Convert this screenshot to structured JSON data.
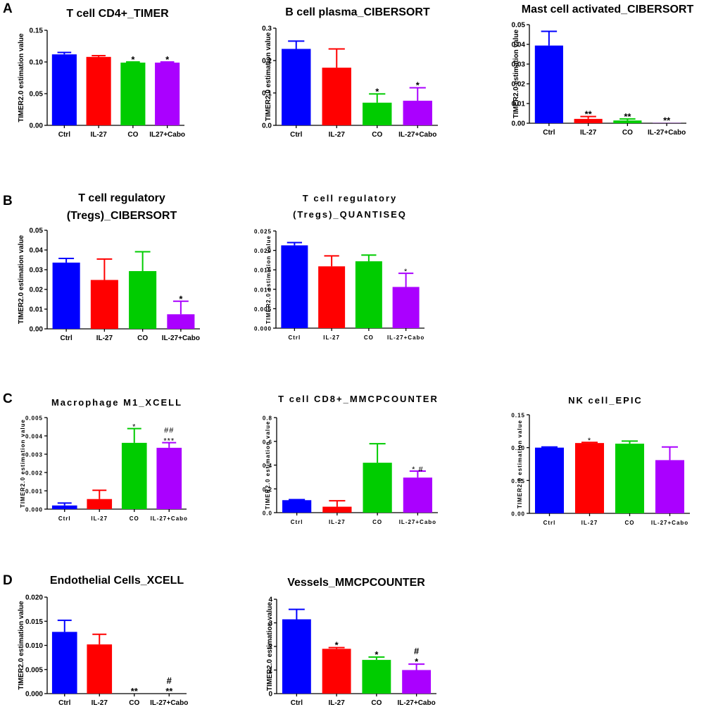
{
  "panel_letters": [
    "A",
    "B",
    "C",
    "D"
  ],
  "chart_data": [
    {
      "type": "bar",
      "title": "T cell CD4+_TIMER",
      "ylabel": "TIMER2.0 estimation value",
      "categories": [
        "Ctrl",
        "IL-27",
        "CO",
        "IL27+Cabo"
      ],
      "values": [
        0.112,
        0.108,
        0.099,
        0.099
      ],
      "errors": [
        0.003,
        0.002,
        0.001,
        0.001
      ],
      "annotations": [
        [
          "",
          ""
        ],
        [
          "",
          ""
        ],
        [
          "*",
          ""
        ],
        [
          "*",
          ""
        ]
      ],
      "colors": [
        "#0000ff",
        "#ff0000",
        "#00cc00",
        "#aa00ff"
      ],
      "ylim": [
        0,
        0.15
      ],
      "yticks": [
        0,
        0.05,
        0.1,
        0.15
      ],
      "ytick_labels": [
        "0.00",
        "0.05",
        "0.10",
        "0.15"
      ]
    },
    {
      "type": "bar",
      "title": "B cell plasma_CIBERSORT",
      "ylabel": "TIMER2.0 estimation value",
      "categories": [
        "Ctrl",
        "IL-27",
        "CO",
        "IL-27+Cabo"
      ],
      "values": [
        0.236,
        0.178,
        0.07,
        0.076
      ],
      "errors": [
        0.024,
        0.058,
        0.027,
        0.04
      ],
      "annotations": [
        [
          "",
          ""
        ],
        [
          "",
          ""
        ],
        [
          "*",
          ""
        ],
        [
          "*",
          ""
        ]
      ],
      "colors": [
        "#0000ff",
        "#ff0000",
        "#00cc00",
        "#aa00ff"
      ],
      "ylim": [
        0,
        0.3
      ],
      "yticks": [
        0,
        0.1,
        0.2,
        0.3
      ],
      "ytick_labels": [
        "0.0",
        "0.1",
        "0.2",
        "0.3"
      ]
    },
    {
      "type": "bar",
      "title": "Mast cell activated_CIBERSORT",
      "ylabel": "TIMER2.0 estimation value",
      "categories": [
        "Ctrl",
        "IL-27",
        "CO",
        "IL-27+Cabo"
      ],
      "values": [
        0.0394,
        0.0022,
        0.0014,
        0.0001
      ],
      "errors": [
        0.0072,
        0.0012,
        0.0008,
        0
      ],
      "annotations": [
        [
          "",
          ""
        ],
        [
          "**",
          ""
        ],
        [
          "**",
          ""
        ],
        [
          "**",
          ""
        ]
      ],
      "colors": [
        "#0000ff",
        "#ff0000",
        "#00cc00",
        "#aa00ff"
      ],
      "ylim": [
        0,
        0.05
      ],
      "yticks": [
        0,
        0.01,
        0.02,
        0.03,
        0.04,
        0.05
      ],
      "ytick_labels": [
        "0.00",
        "0.01",
        "0.02",
        "0.03",
        "0.04",
        "0.05"
      ]
    },
    {
      "type": "bar",
      "title": "T cell regulatory",
      "title2": "(Tregs)_CIBERSORT",
      "ylabel": "TIMER2.0 estimation value",
      "categories": [
        "Ctrl",
        "IL-27",
        "CO",
        "IL-27+Cabo"
      ],
      "values": [
        0.0336,
        0.0248,
        0.0293,
        0.0074
      ],
      "errors": [
        0.0021,
        0.0106,
        0.0098,
        0.0066
      ],
      "annotations": [
        [
          "",
          ""
        ],
        [
          "",
          ""
        ],
        [
          "",
          ""
        ],
        [
          "*",
          ""
        ]
      ],
      "colors": [
        "#0000ff",
        "#ff0000",
        "#00cc00",
        "#aa00ff"
      ],
      "ylim": [
        0,
        0.05
      ],
      "yticks": [
        0,
        0.01,
        0.02,
        0.03,
        0.04,
        0.05
      ],
      "ytick_labels": [
        "0.00",
        "0.01",
        "0.02",
        "0.03",
        "0.04",
        "0.05"
      ]
    },
    {
      "type": "bar",
      "title": "T cell regulatory",
      "title2": "(Tregs)_QUANTISEQ",
      "ylabel": "TIMER2.0 estimation value",
      "categories": [
        "Ctrl",
        "IL-27",
        "CO",
        "IL-27+Cabo"
      ],
      "values": [
        0.0213,
        0.0159,
        0.0172,
        0.0106
      ],
      "errors": [
        0.0007,
        0.0027,
        0.0016,
        0.0035
      ],
      "annotations": [
        [
          "",
          ""
        ],
        [
          "",
          ""
        ],
        [
          "",
          ""
        ],
        [
          "*",
          ""
        ]
      ],
      "colors": [
        "#0000ff",
        "#ff0000",
        "#00cc00",
        "#aa00ff"
      ],
      "ylim": [
        0,
        0.025
      ],
      "yticks": [
        0,
        0.005,
        0.01,
        0.015,
        0.02,
        0.025
      ],
      "ytick_labels": [
        "0.000",
        "0.005",
        "0.010",
        "0.015",
        "0.020",
        "0.025"
      ]
    },
    {
      "type": "bar",
      "title": "Macrophage M1_XCELL",
      "ylabel": "TIMER2.0 estimation value",
      "categories": [
        "Ctrl",
        "IL-27",
        "CO",
        "IL-27+Cabo"
      ],
      "values": [
        0.0002,
        0.00055,
        0.00362,
        0.00335
      ],
      "errors": [
        0.00013,
        0.00048,
        0.00078,
        0.00028
      ],
      "annotations": [
        [
          "",
          ""
        ],
        [
          "",
          ""
        ],
        [
          "*",
          ""
        ],
        [
          "***",
          "##"
        ]
      ],
      "colors": [
        "#0000ff",
        "#ff0000",
        "#00cc00",
        "#aa00ff"
      ],
      "ylim": [
        0,
        0.005
      ],
      "yticks": [
        0,
        0.001,
        0.002,
        0.003,
        0.004,
        0.005
      ],
      "ytick_labels": [
        "0.000",
        "0.001",
        "0.002",
        "0.003",
        "0.004",
        "0.005"
      ]
    },
    {
      "type": "bar",
      "title": "T cell CD8+_MMCPCOUNTER",
      "ylabel": "TIMER2.0 estimation value",
      "categories": [
        "Ctrl",
        "IL-27",
        "CO",
        "IL-27+Cabo"
      ],
      "values": [
        0.105,
        0.05,
        0.42,
        0.295
      ],
      "errors": [
        0.005,
        0.05,
        0.16,
        0.055
      ],
      "annotations": [
        [
          "",
          ""
        ],
        [
          "",
          ""
        ],
        [
          "",
          ""
        ],
        [
          "* #",
          ""
        ]
      ],
      "colors": [
        "#0000ff",
        "#ff0000",
        "#00cc00",
        "#aa00ff"
      ],
      "ylim": [
        0,
        0.8
      ],
      "yticks": [
        0,
        0.2,
        0.4,
        0.6,
        0.8
      ],
      "ytick_labels": [
        "0.0",
        "0.2",
        "0.4",
        "0.6",
        "0.8"
      ]
    },
    {
      "type": "bar",
      "title": "NK cell_EPIC",
      "ylabel": "TIMER2.0 estimation value",
      "categories": [
        "Ctrl",
        "IL-27",
        "CO",
        "IL-27+Cabo"
      ],
      "values": [
        0.1,
        0.107,
        0.106,
        0.081
      ],
      "errors": [
        0.001,
        0.001,
        0.004,
        0.02
      ],
      "annotations": [
        [
          "",
          ""
        ],
        [
          "*",
          ""
        ],
        [
          "",
          ""
        ],
        [
          "",
          ""
        ]
      ],
      "colors": [
        "#0000ff",
        "#ff0000",
        "#00cc00",
        "#aa00ff"
      ],
      "ylim": [
        0,
        0.15
      ],
      "yticks": [
        0,
        0.05,
        0.1,
        0.15
      ],
      "ytick_labels": [
        "0.00",
        "0.05",
        "0.10",
        "0.15"
      ]
    },
    {
      "type": "bar",
      "title": "Endothelial Cells_XCELL",
      "ylabel": "TIMER2.0 estimation value",
      "categories": [
        "Ctrl",
        "IL-27",
        "CO",
        "IL-27+Cabo"
      ],
      "values": [
        0.0128,
        0.0102,
        0,
        0
      ],
      "errors": [
        0.0024,
        0.0021,
        0,
        0
      ],
      "annotations": [
        [
          "",
          ""
        ],
        [
          "",
          ""
        ],
        [
          "**",
          ""
        ],
        [
          "**",
          "#"
        ]
      ],
      "colors": [
        "#0000ff",
        "#ff0000",
        "#00cc00",
        "#aa00ff"
      ],
      "ylim": [
        0,
        0.02
      ],
      "yticks": [
        0,
        0.005,
        0.01,
        0.015,
        0.02
      ],
      "ytick_labels": [
        "0.000",
        "0.005",
        "0.010",
        "0.015",
        "0.020"
      ]
    },
    {
      "type": "bar",
      "title": "Vessels_MMCPCOUNTER",
      "ylabel": "TIMER2.0 estimation value",
      "categories": [
        "Ctrl",
        "IL-27",
        "CO",
        "IL-27+Cabo"
      ],
      "values": [
        3.15,
        1.9,
        1.43,
        1.0
      ],
      "errors": [
        0.42,
        0.05,
        0.12,
        0.25
      ],
      "annotations": [
        [
          "",
          ""
        ],
        [
          "*",
          ""
        ],
        [
          "*",
          ""
        ],
        [
          "*",
          "#"
        ]
      ],
      "colors": [
        "#0000ff",
        "#ff0000",
        "#00cc00",
        "#aa00ff"
      ],
      "ylim": [
        0,
        4
      ],
      "yticks": [
        0,
        1,
        2,
        3,
        4
      ],
      "ytick_labels": [
        "0",
        "1",
        "2",
        "3",
        "4"
      ]
    }
  ]
}
